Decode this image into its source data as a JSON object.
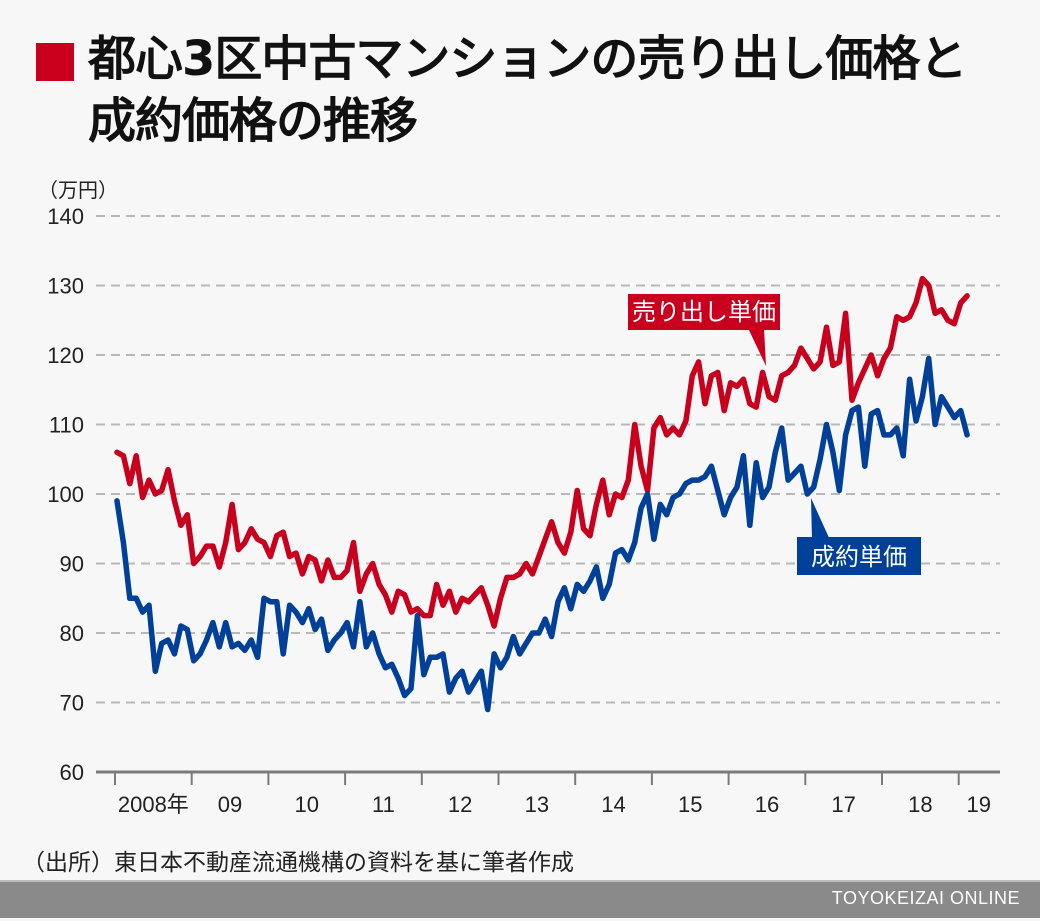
{
  "title": "都心3区中古マンションの売り出し価格と成約価格の推移",
  "title_line1": "都心3区中古マンションの売り出し価格と",
  "title_line2": "成約価格の推移",
  "source": "（出所）東日本不動産流通機構の資料を基に筆者作成",
  "footer_brand": "TOYOKEIZAI ONLINE",
  "colors": {
    "accent": "#c8001e",
    "asking": "#c8001e",
    "contract": "#004098",
    "grid": "#b8b8b8",
    "axis": "#7a7a7a"
  },
  "chart_data": {
    "type": "line",
    "title": "都心3区中古マンションの売り出し価格と成約価格の推移",
    "ylabel": "（万円）",
    "xlabel": "",
    "ylim": [
      60,
      140
    ],
    "yticks": [
      60,
      70,
      80,
      90,
      100,
      110,
      120,
      130,
      140
    ],
    "ytick_labels": [
      "60",
      "70",
      "80",
      "90",
      "100",
      "110",
      "120",
      "130",
      "140"
    ],
    "grid": true,
    "x_start": "2008-01",
    "x_frequency": "monthly",
    "xtick_labels": [
      "2008年",
      "09",
      "10",
      "11",
      "12",
      "13",
      "14",
      "15",
      "16",
      "17",
      "18",
      "19"
    ],
    "legend_placement": "inline-callouts",
    "series": [
      {
        "name": "売り出し単価",
        "color": "#c8001e",
        "values": [
          106,
          105.5,
          101.5,
          105.5,
          99.5,
          102,
          100,
          100.5,
          103.5,
          99,
          95.5,
          97,
          90,
          91,
          92.5,
          92.5,
          89.5,
          93,
          98.5,
          92,
          93,
          95,
          93.5,
          93,
          91,
          94,
          94.5,
          91,
          91.5,
          88.5,
          91,
          90.5,
          87.5,
          90.5,
          88,
          88,
          89,
          93,
          86,
          88.5,
          90,
          87,
          85.5,
          83,
          86,
          85.5,
          83,
          83.5,
          82.5,
          82.5,
          87,
          84,
          86,
          83,
          85,
          84.5,
          85.5,
          86.5,
          84,
          81,
          85,
          88,
          88,
          88.5,
          90,
          88.5,
          91,
          93.5,
          96,
          93,
          91.5,
          94.5,
          100.5,
          95,
          94,
          98.5,
          102,
          97,
          100,
          99.5,
          102,
          110,
          104,
          100.5,
          109.5,
          111,
          108.5,
          109.5,
          108.5,
          110.5,
          117,
          119,
          113,
          117,
          117.5,
          112,
          116,
          115.5,
          116.5,
          113,
          112.5,
          117.5,
          114,
          113.5,
          117,
          117.5,
          118.5,
          121,
          119.5,
          118,
          119,
          124,
          118.5,
          119,
          126,
          113.5,
          116,
          118,
          120,
          117,
          119.5,
          121,
          125.5,
          125,
          125.5,
          127.5,
          131,
          130,
          126,
          126.5,
          125,
          124.5,
          127.5,
          128.5
        ]
      },
      {
        "name": "成約単価",
        "color": "#004098",
        "values": [
          99,
          93,
          85,
          85,
          83,
          84,
          74.5,
          78.5,
          79,
          77,
          81,
          80.5,
          76,
          77,
          79,
          81.5,
          78,
          81.5,
          78,
          78.5,
          77.5,
          79,
          76.5,
          85,
          84.5,
          84.5,
          77,
          84,
          83,
          81.5,
          83.5,
          80.5,
          82,
          77.5,
          79,
          80,
          81.5,
          78,
          84.5,
          78,
          80,
          77,
          75,
          75.5,
          73.5,
          71,
          72,
          82.5,
          74,
          76.5,
          76.5,
          77,
          71.5,
          73.5,
          74.5,
          71.5,
          73,
          74.5,
          69,
          77,
          75,
          76.5,
          79.5,
          77,
          78.5,
          80,
          80,
          82,
          79.5,
          84.5,
          86.5,
          83.5,
          87,
          86,
          87.5,
          89.5,
          85,
          87,
          91.5,
          92,
          90.5,
          93,
          98,
          100,
          93.5,
          98.5,
          97,
          99.5,
          100,
          101.5,
          102,
          102,
          102.5,
          104,
          100.5,
          97,
          99.5,
          101,
          105.5,
          95.5,
          104.5,
          99.5,
          101,
          106,
          109.5,
          102,
          103,
          104,
          100,
          101,
          105,
          110,
          106,
          100.5,
          108.5,
          112,
          112.5,
          104,
          111.5,
          112,
          108.5,
          108.5,
          109.5,
          105.5,
          116.5,
          110.5,
          114,
          119.5,
          110,
          114,
          112.5,
          111,
          112,
          108.5
        ]
      }
    ],
    "annotations": [
      {
        "text": "売り出し単価",
        "series": "売り出し単価",
        "points_to": "2016-01"
      },
      {
        "text": "成約単価",
        "series": "成約単価",
        "points_to": "2016-07"
      }
    ]
  }
}
